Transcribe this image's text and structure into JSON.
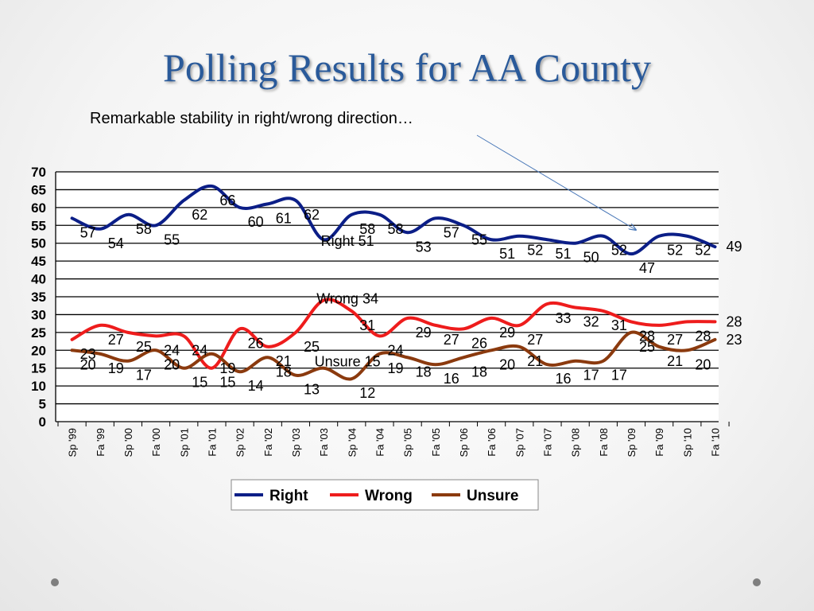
{
  "slide": {
    "title": "Polling Results for AA County",
    "subtitle": "Remarkable stability in right/wrong direction…"
  },
  "colors": {
    "title": "#2a5a9a",
    "right": "#0b1e87",
    "wrong": "#ee1c1c",
    "unsure": "#8b3a0e"
  },
  "chart_data": {
    "type": "line",
    "categories": [
      "Sp '99",
      "Fa '99",
      "Sp '00",
      "Fa '00",
      "Sp '01",
      "Fa '01",
      "Sp '02",
      "Fa '02",
      "Sp '03",
      "Fa '03",
      "Sp '04",
      "Fa '04",
      "Sp '05",
      "Fa '05",
      "Sp '06",
      "Fa '06",
      "Sp '07",
      "Fa '07",
      "Sp '08",
      "Fa '08",
      "Sp '09",
      "Fa '09",
      "Sp '10",
      "Fa '10"
    ],
    "ylim": [
      0,
      70
    ],
    "yticks": [
      0,
      5,
      10,
      15,
      20,
      25,
      30,
      35,
      40,
      45,
      50,
      55,
      60,
      65,
      70
    ],
    "grid": true,
    "legend_position": "bottom",
    "series": [
      {
        "name": "Right",
        "color": "#0b1e87",
        "values": [
          57,
          54,
          58,
          55,
          62,
          66,
          60,
          61,
          62,
          51,
          58,
          58,
          53,
          57,
          55,
          51,
          52,
          51,
          50,
          52,
          47,
          52,
          52,
          49
        ]
      },
      {
        "name": "Wrong",
        "color": "#ee1c1c",
        "values": [
          23,
          27,
          25,
          24,
          24,
          15,
          26,
          21,
          25,
          34,
          31,
          24,
          29,
          27,
          26,
          29,
          27,
          33,
          32,
          31,
          28,
          27,
          28,
          28
        ]
      },
      {
        "name": "Unsure",
        "color": "#8b3a0e",
        "values": [
          20,
          19,
          17,
          20,
          15,
          19,
          14,
          18,
          13,
          15,
          12,
          19,
          18,
          16,
          18,
          20,
          21,
          16,
          17,
          17,
          25,
          21,
          20,
          23
        ]
      }
    ],
    "annotations": [
      {
        "text": "Right 51",
        "series": "Right",
        "index": 9
      },
      {
        "text": "Wrong 34",
        "series": "Wrong",
        "index": 9
      },
      {
        "text": "Unsure 15",
        "series": "Unsure",
        "index": 9
      }
    ]
  }
}
